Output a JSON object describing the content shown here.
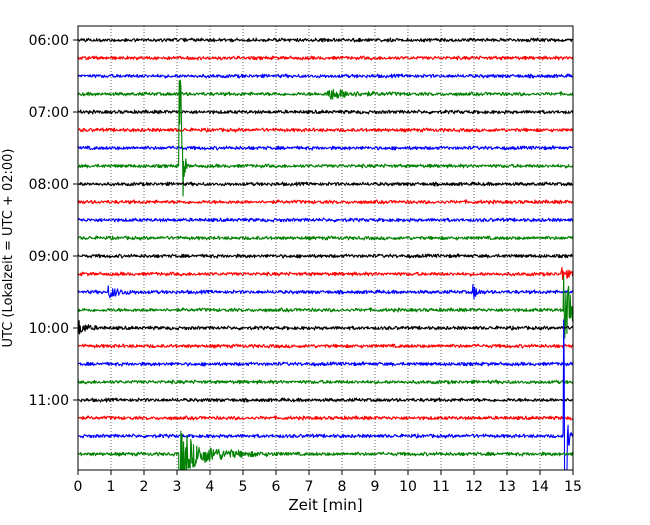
{
  "chart_data": {
    "type": "line",
    "title": "",
    "xlabel": "Zeit  [min]",
    "ylabel": "UTC (Lokalzeit = UTC + 02:00)",
    "xlim": [
      0,
      15
    ],
    "x_ticks": [
      "0",
      "1",
      "2",
      "3",
      "4",
      "5",
      "6",
      "7",
      "8",
      "9",
      "10",
      "11",
      "12",
      "13",
      "14",
      "15"
    ],
    "y_ticks": [
      "06:00",
      "07:00",
      "08:00",
      "09:00",
      "10:00",
      "11:00"
    ],
    "y_tick_rows": [
      0,
      4,
      8,
      12,
      16,
      20
    ],
    "grid": "vertical-dotted",
    "row_interval_minutes": 15,
    "rows": 24,
    "row_color_cycle": [
      "#000000",
      "#ff0000",
      "#0000ff",
      "#008000"
    ],
    "events": [
      {
        "row": 3,
        "x": 7.6,
        "amplitude": 0.3,
        "duration": 0.6
      },
      {
        "row": 7,
        "x": 3.1,
        "amplitude": 9,
        "duration": 0.05
      },
      {
        "row": 13,
        "x": 14.7,
        "amplitude": 0.35,
        "duration": 0.15
      },
      {
        "row": 14,
        "x": 0.95,
        "amplitude": 0.3,
        "duration": 0.3
      },
      {
        "row": 14,
        "x": 12.0,
        "amplitude": 0.35,
        "duration": 0.1
      },
      {
        "row": 15,
        "x": 14.75,
        "amplitude": 2.0,
        "duration": 0.3
      },
      {
        "row": 16,
        "x": 0.05,
        "amplitude": 0.35,
        "duration": 0.2
      },
      {
        "row": 23,
        "x": 3.15,
        "amplitude": 1.0,
        "duration": 0.8
      },
      {
        "row": 23,
        "x": 3.1,
        "amplitude": 3.0,
        "duration": 0.08
      },
      {
        "row": 22,
        "x": 14.75,
        "amplitude": 8,
        "duration": 0.05
      }
    ]
  }
}
